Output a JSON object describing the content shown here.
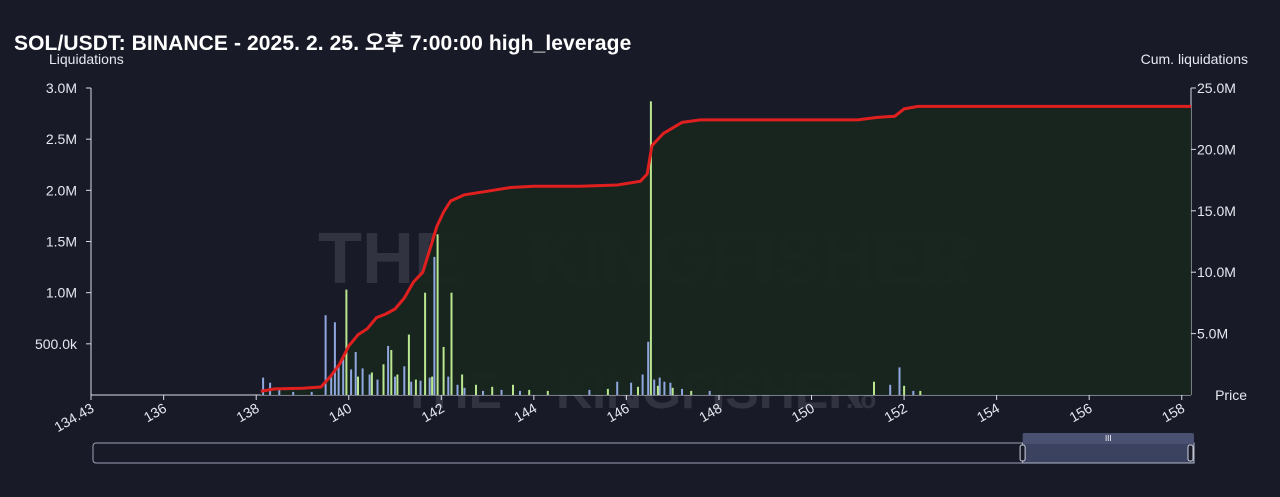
{
  "title": "SOL/USDT: BINANCE - 2025. 2. 25. 오후 7:00:00 high_leverage",
  "chart_data": {
    "type": "bar",
    "title": "SOL/USDT: BINANCE - 2025. 2. 25. 오후 7:00:00 high_leverage",
    "ylabel": "Liquidations",
    "y2label": "Cum. liquidations",
    "xlabel": "Price",
    "xlim": [
      134.43,
      158.2
    ],
    "ylim": [
      0,
      3000000
    ],
    "y2lim": [
      0,
      25000000
    ],
    "x_ticks": [
      "134.43",
      "136",
      "138",
      "140",
      "142",
      "144",
      "146",
      "148",
      "150",
      "152",
      "154",
      "156",
      "158"
    ],
    "y_ticks": [
      "500.0k",
      "1.0M",
      "1.5M",
      "2.0M",
      "2.5M",
      "3.0M"
    ],
    "y2_ticks": [
      "5.0M",
      "10.0M",
      "15.0M",
      "20.0M",
      "25.0M"
    ],
    "grid": false,
    "watermark": "THE KINGFISHER.io",
    "colors": {
      "short_liquidations": "#8fa6de",
      "long_liquidations": "#b9e68f",
      "cumulative": "#e01f1f",
      "cumulative_fill": "#18261f",
      "background": "#181a28"
    },
    "series": [
      {
        "kind": "bar",
        "color": "#8fa6de",
        "points": [
          [
            138.15,
            170000
          ],
          [
            138.3,
            120000
          ],
          [
            138.5,
            50000
          ],
          [
            138.8,
            30000
          ],
          [
            139.2,
            30000
          ],
          [
            139.5,
            780000
          ],
          [
            139.62,
            200000
          ],
          [
            139.7,
            710000
          ],
          [
            139.78,
            300000
          ],
          [
            139.88,
            350000
          ],
          [
            140.05,
            250000
          ],
          [
            140.15,
            420000
          ],
          [
            140.3,
            260000
          ],
          [
            140.45,
            200000
          ],
          [
            140.62,
            150000
          ],
          [
            140.85,
            480000
          ],
          [
            141.0,
            180000
          ],
          [
            141.2,
            280000
          ],
          [
            141.35,
            130000
          ],
          [
            141.55,
            140000
          ],
          [
            141.75,
            170000
          ],
          [
            141.85,
            1350000
          ],
          [
            142.15,
            180000
          ],
          [
            142.35,
            100000
          ],
          [
            142.5,
            70000
          ],
          [
            142.9,
            40000
          ],
          [
            143.3,
            50000
          ],
          [
            143.7,
            40000
          ],
          [
            145.2,
            50000
          ],
          [
            145.8,
            130000
          ],
          [
            146.1,
            120000
          ],
          [
            146.35,
            200000
          ],
          [
            146.47,
            520000
          ],
          [
            146.6,
            150000
          ],
          [
            146.72,
            170000
          ],
          [
            146.82,
            130000
          ],
          [
            146.95,
            120000
          ],
          [
            147.2,
            60000
          ],
          [
            147.8,
            40000
          ],
          [
            151.7,
            100000
          ],
          [
            151.9,
            270000
          ],
          [
            152.2,
            40000
          ]
        ]
      },
      {
        "kind": "bar",
        "color": "#b9e68f",
        "points": [
          [
            139.95,
            1030000
          ],
          [
            140.2,
            180000
          ],
          [
            140.5,
            220000
          ],
          [
            140.75,
            300000
          ],
          [
            140.92,
            440000
          ],
          [
            141.05,
            200000
          ],
          [
            141.3,
            590000
          ],
          [
            141.45,
            150000
          ],
          [
            141.65,
            1000000
          ],
          [
            141.8,
            180000
          ],
          [
            141.92,
            1570000
          ],
          [
            142.05,
            470000
          ],
          [
            142.22,
            1000000
          ],
          [
            142.45,
            200000
          ],
          [
            142.75,
            100000
          ],
          [
            143.1,
            80000
          ],
          [
            143.55,
            100000
          ],
          [
            143.9,
            50000
          ],
          [
            144.3,
            40000
          ],
          [
            145.6,
            60000
          ],
          [
            146.25,
            80000
          ],
          [
            146.53,
            2870000
          ],
          [
            146.68,
            90000
          ],
          [
            147.0,
            70000
          ],
          [
            147.4,
            40000
          ],
          [
            151.35,
            130000
          ],
          [
            152.0,
            90000
          ],
          [
            152.35,
            40000
          ]
        ]
      },
      {
        "kind": "line",
        "color": "#e01f1f",
        "name": "Cum. liquidations",
        "points": [
          [
            138.1,
            300000
          ],
          [
            138.4,
            500000
          ],
          [
            139.0,
            550000
          ],
          [
            139.4,
            650000
          ],
          [
            139.6,
            1500000
          ],
          [
            139.8,
            2500000
          ],
          [
            140.0,
            4000000
          ],
          [
            140.2,
            4900000
          ],
          [
            140.4,
            5400000
          ],
          [
            140.6,
            6300000
          ],
          [
            140.8,
            6600000
          ],
          [
            141.0,
            7000000
          ],
          [
            141.2,
            7900000
          ],
          [
            141.4,
            9200000
          ],
          [
            141.6,
            10000000
          ],
          [
            141.75,
            11800000
          ],
          [
            141.9,
            13700000
          ],
          [
            142.05,
            14900000
          ],
          [
            142.2,
            15800000
          ],
          [
            142.5,
            16300000
          ],
          [
            143.0,
            16600000
          ],
          [
            143.5,
            16900000
          ],
          [
            144.0,
            17000000
          ],
          [
            145.0,
            17000000
          ],
          [
            145.8,
            17100000
          ],
          [
            146.3,
            17400000
          ],
          [
            146.45,
            18000000
          ],
          [
            146.55,
            20300000
          ],
          [
            146.8,
            21300000
          ],
          [
            147.2,
            22200000
          ],
          [
            147.6,
            22400000
          ],
          [
            148.0,
            22400000
          ],
          [
            151.0,
            22400000
          ],
          [
            151.4,
            22600000
          ],
          [
            151.8,
            22700000
          ],
          [
            152.0,
            23300000
          ],
          [
            152.3,
            23500000
          ],
          [
            153.0,
            23500000
          ],
          [
            158.2,
            23500000
          ]
        ]
      }
    ]
  },
  "rangeslider": {
    "start": 154.5,
    "end": 158.2,
    "handle_label": "III"
  }
}
